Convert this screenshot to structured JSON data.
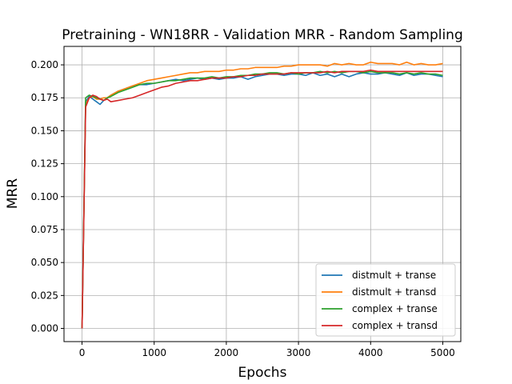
{
  "chart_data": {
    "type": "line",
    "title": "Pretraining - WN18RR - Validation MRR - Random Sampling",
    "xlabel": "Epochs",
    "ylabel": "MRR",
    "xlim": [
      -250,
      5250
    ],
    "ylim": [
      -0.01,
      0.214
    ],
    "xticks": [
      0,
      1000,
      2000,
      3000,
      4000,
      5000
    ],
    "xtick_labels": [
      "0",
      "1000",
      "2000",
      "3000",
      "4000",
      "5000"
    ],
    "yticks": [
      0.0,
      0.025,
      0.05,
      0.075,
      0.1,
      0.125,
      0.15,
      0.175,
      0.2
    ],
    "ytick_labels": [
      "0.000",
      "0.025",
      "0.050",
      "0.075",
      "0.100",
      "0.125",
      "0.150",
      "0.175",
      "0.200"
    ],
    "grid": true,
    "legend_position": "lower-right",
    "series": [
      {
        "name": "distmult + transe",
        "color": "#1f77b4",
        "x": [
          0,
          50,
          100,
          150,
          200,
          250,
          300,
          350,
          400,
          500,
          600,
          700,
          800,
          900,
          1000,
          1100,
          1200,
          1300,
          1400,
          1500,
          1600,
          1700,
          1800,
          1900,
          2000,
          2100,
          2200,
          2300,
          2400,
          2500,
          2600,
          2700,
          2800,
          2900,
          3000,
          3100,
          3200,
          3300,
          3400,
          3500,
          3600,
          3700,
          3800,
          3900,
          4000,
          4100,
          4200,
          4300,
          4400,
          4500,
          4600,
          4700,
          4800,
          4900,
          5000
        ],
        "values": [
          0.0,
          0.172,
          0.176,
          0.174,
          0.172,
          0.17,
          0.173,
          0.175,
          0.177,
          0.18,
          0.182,
          0.184,
          0.185,
          0.185,
          0.186,
          0.187,
          0.188,
          0.189,
          0.188,
          0.189,
          0.19,
          0.189,
          0.19,
          0.189,
          0.19,
          0.19,
          0.191,
          0.189,
          0.191,
          0.192,
          0.193,
          0.193,
          0.192,
          0.193,
          0.193,
          0.192,
          0.194,
          0.192,
          0.193,
          0.191,
          0.193,
          0.191,
          0.193,
          0.194,
          0.193,
          0.193,
          0.194,
          0.193,
          0.192,
          0.194,
          0.192,
          0.193,
          0.193,
          0.192,
          0.191
        ]
      },
      {
        "name": "distmult + transd",
        "color": "#ff7f0e",
        "x": [
          0,
          50,
          100,
          150,
          200,
          250,
          300,
          350,
          400,
          500,
          600,
          700,
          800,
          900,
          1000,
          1100,
          1200,
          1300,
          1400,
          1500,
          1600,
          1700,
          1800,
          1900,
          2000,
          2100,
          2200,
          2300,
          2400,
          2500,
          2600,
          2700,
          2800,
          2900,
          3000,
          3100,
          3200,
          3300,
          3400,
          3500,
          3600,
          3700,
          3800,
          3900,
          4000,
          4100,
          4200,
          4300,
          4400,
          4500,
          4600,
          4700,
          4800,
          4900,
          5000
        ],
        "values": [
          0.0,
          0.17,
          0.175,
          0.176,
          0.174,
          0.174,
          0.175,
          0.175,
          0.177,
          0.18,
          0.182,
          0.184,
          0.186,
          0.188,
          0.189,
          0.19,
          0.191,
          0.192,
          0.193,
          0.194,
          0.194,
          0.195,
          0.195,
          0.195,
          0.196,
          0.196,
          0.197,
          0.197,
          0.198,
          0.198,
          0.198,
          0.198,
          0.199,
          0.199,
          0.2,
          0.2,
          0.2,
          0.2,
          0.199,
          0.201,
          0.2,
          0.201,
          0.2,
          0.2,
          0.202,
          0.201,
          0.201,
          0.201,
          0.2,
          0.202,
          0.2,
          0.201,
          0.2,
          0.2,
          0.201
        ]
      },
      {
        "name": "complex + transe",
        "color": "#2ca02c",
        "x": [
          0,
          50,
          100,
          150,
          200,
          250,
          300,
          350,
          400,
          500,
          600,
          700,
          800,
          900,
          1000,
          1100,
          1200,
          1300,
          1400,
          1500,
          1600,
          1700,
          1800,
          1900,
          2000,
          2100,
          2200,
          2300,
          2400,
          2500,
          2600,
          2700,
          2800,
          2900,
          3000,
          3100,
          3200,
          3300,
          3400,
          3500,
          3600,
          3700,
          3800,
          3900,
          4000,
          4100,
          4200,
          4300,
          4400,
          4500,
          4600,
          4700,
          4800,
          4900,
          5000
        ],
        "values": [
          0.0,
          0.175,
          0.177,
          0.176,
          0.175,
          0.174,
          0.173,
          0.175,
          0.176,
          0.179,
          0.181,
          0.183,
          0.185,
          0.186,
          0.186,
          0.187,
          0.188,
          0.188,
          0.189,
          0.19,
          0.19,
          0.19,
          0.191,
          0.19,
          0.191,
          0.191,
          0.192,
          0.192,
          0.193,
          0.193,
          0.194,
          0.194,
          0.193,
          0.194,
          0.193,
          0.194,
          0.194,
          0.195,
          0.194,
          0.195,
          0.194,
          0.195,
          0.195,
          0.194,
          0.195,
          0.194,
          0.194,
          0.194,
          0.193,
          0.194,
          0.193,
          0.194,
          0.193,
          0.193,
          0.192
        ]
      },
      {
        "name": "complex + transd",
        "color": "#d62728",
        "x": [
          0,
          50,
          100,
          150,
          200,
          250,
          300,
          350,
          400,
          500,
          600,
          700,
          800,
          900,
          1000,
          1100,
          1200,
          1300,
          1400,
          1500,
          1600,
          1700,
          1800,
          1900,
          2000,
          2100,
          2200,
          2300,
          2400,
          2500,
          2600,
          2700,
          2800,
          2900,
          3000,
          3100,
          3200,
          3300,
          3400,
          3500,
          3600,
          3700,
          3800,
          3900,
          4000,
          4100,
          4200,
          4300,
          4400,
          4500,
          4600,
          4700,
          4800,
          4900,
          5000
        ],
        "values": [
          0.0,
          0.168,
          0.175,
          0.177,
          0.176,
          0.174,
          0.173,
          0.174,
          0.172,
          0.173,
          0.174,
          0.175,
          0.177,
          0.179,
          0.181,
          0.183,
          0.184,
          0.186,
          0.187,
          0.188,
          0.188,
          0.189,
          0.19,
          0.19,
          0.19,
          0.191,
          0.191,
          0.192,
          0.192,
          0.193,
          0.193,
          0.193,
          0.193,
          0.194,
          0.194,
          0.194,
          0.194,
          0.194,
          0.195,
          0.194,
          0.195,
          0.195,
          0.195,
          0.195,
          0.196,
          0.195,
          0.195,
          0.195,
          0.195,
          0.195,
          0.195,
          0.195,
          0.195,
          0.195,
          0.195
        ]
      }
    ]
  }
}
